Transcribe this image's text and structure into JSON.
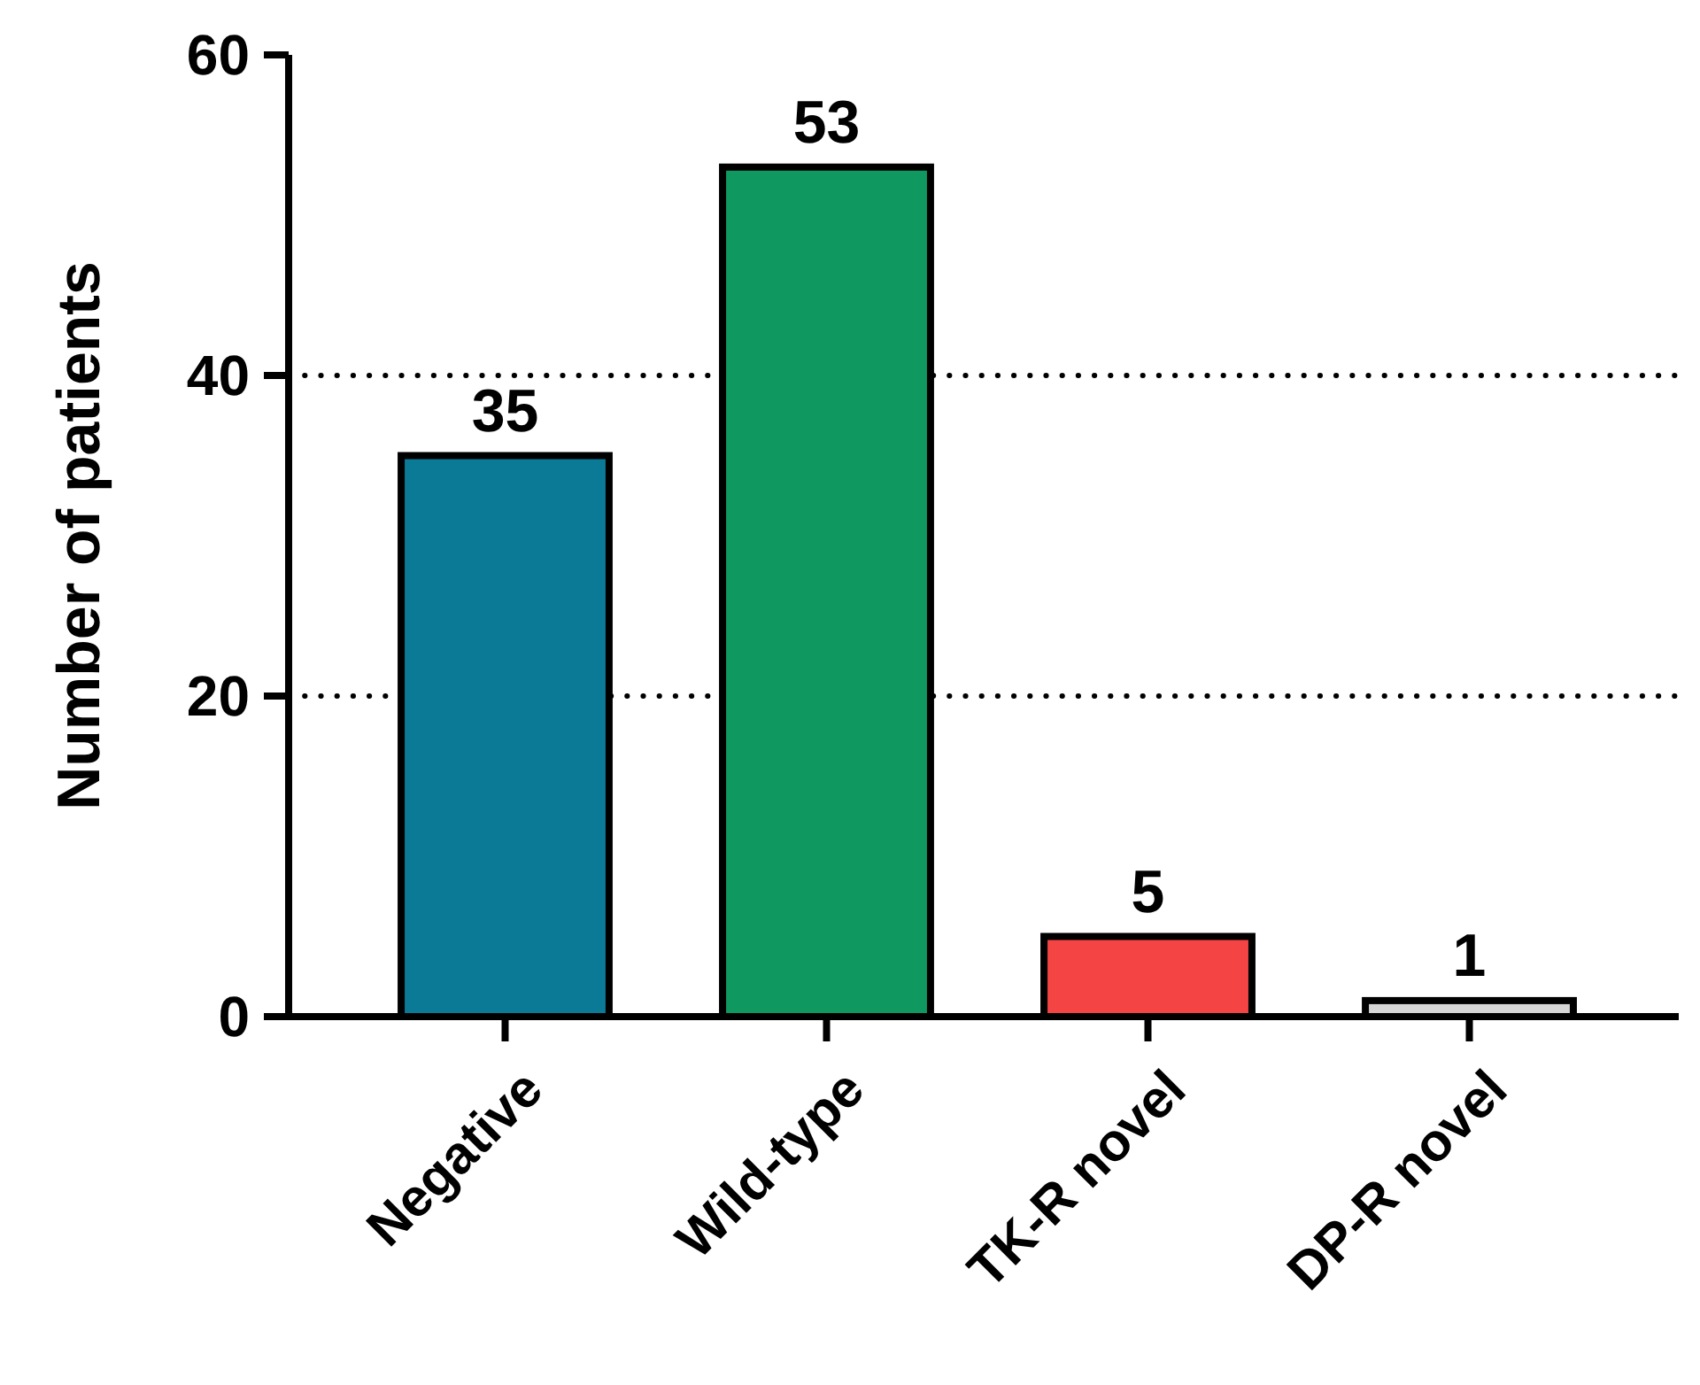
{
  "chart_data": {
    "type": "bar",
    "ylabel": "Number of patients",
    "categories": [
      "Negative",
      "Wild-type",
      "TK-R novel",
      "DP-R novel"
    ],
    "values": [
      35,
      53,
      5,
      1
    ],
    "colors": [
      "#0a7a96",
      "#0f9960",
      "#f44444",
      "#d6d6d6"
    ],
    "ylim": [
      0,
      60
    ],
    "yticks": [
      0,
      20,
      40,
      60
    ],
    "grid": "y",
    "data_labels": true
  }
}
